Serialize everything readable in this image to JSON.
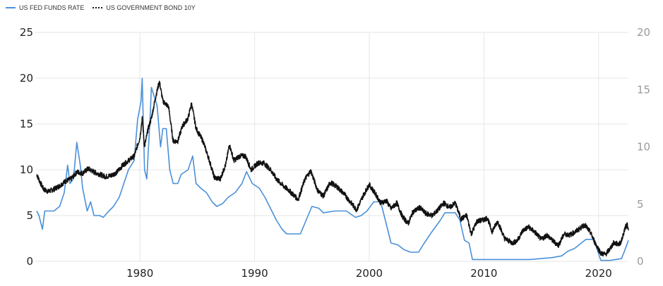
{
  "legend": {
    "fed_label": "US FED FUNDS RATE",
    "bond_label": "US GOVERNMENT BOND 10Y"
  },
  "colors": {
    "fed": "#4a90d9",
    "bond": "#111111",
    "grid": "#e6e6e6"
  },
  "chart_data": {
    "type": "line",
    "x_range": [
      1971,
      2022.6
    ],
    "x_ticks": [
      "1980",
      "1990",
      "2000",
      "2010",
      "2020"
    ],
    "y_left": {
      "range": [
        0,
        25
      ],
      "ticks": [
        "0",
        "5",
        "10",
        "15",
        "20",
        "25"
      ]
    },
    "y_right": {
      "range": [
        0,
        20
      ],
      "ticks": [
        "0",
        "5",
        "10",
        "15",
        "20"
      ]
    },
    "grid": true,
    "legend_position": "top-left",
    "series": [
      {
        "name": "US FED FUNDS RATE",
        "axis": "left",
        "style": "solid",
        "points": [
          [
            1971.0,
            5.5
          ],
          [
            1971.2,
            5.0
          ],
          [
            1971.5,
            3.5
          ],
          [
            1971.7,
            5.5
          ],
          [
            1972.5,
            5.5
          ],
          [
            1973.0,
            6.0
          ],
          [
            1973.4,
            7.5
          ],
          [
            1973.7,
            10.5
          ],
          [
            1973.9,
            8.5
          ],
          [
            1974.2,
            9.0
          ],
          [
            1974.5,
            13.0
          ],
          [
            1974.8,
            10.5
          ],
          [
            1975.0,
            8.0
          ],
          [
            1975.4,
            5.5
          ],
          [
            1975.7,
            6.5
          ],
          [
            1976.0,
            5.0
          ],
          [
            1976.5,
            5.0
          ],
          [
            1976.8,
            4.8
          ],
          [
            1977.3,
            5.5
          ],
          [
            1977.7,
            6.0
          ],
          [
            1978.2,
            7.0
          ],
          [
            1978.6,
            8.5
          ],
          [
            1979.0,
            10.0
          ],
          [
            1979.5,
            11.0
          ],
          [
            1979.8,
            15.5
          ],
          [
            1980.1,
            17.5
          ],
          [
            1980.2,
            20.0
          ],
          [
            1980.4,
            10.0
          ],
          [
            1980.6,
            9.0
          ],
          [
            1980.9,
            16.0
          ],
          [
            1981.0,
            19.0
          ],
          [
            1981.5,
            17.0
          ],
          [
            1981.8,
            12.5
          ],
          [
            1982.0,
            14.5
          ],
          [
            1982.3,
            14.5
          ],
          [
            1982.6,
            10.0
          ],
          [
            1982.9,
            8.5
          ],
          [
            1983.3,
            8.5
          ],
          [
            1983.6,
            9.5
          ],
          [
            1984.2,
            10.0
          ],
          [
            1984.6,
            11.5
          ],
          [
            1984.9,
            8.5
          ],
          [
            1985.3,
            8.0
          ],
          [
            1985.8,
            7.5
          ],
          [
            1986.3,
            6.5
          ],
          [
            1986.7,
            6.0
          ],
          [
            1987.2,
            6.3
          ],
          [
            1987.7,
            7.0
          ],
          [
            1988.3,
            7.5
          ],
          [
            1988.9,
            8.5
          ],
          [
            1989.3,
            9.8
          ],
          [
            1989.8,
            8.5
          ],
          [
            1990.4,
            8.0
          ],
          [
            1990.9,
            7.0
          ],
          [
            1991.3,
            6.0
          ],
          [
            1991.9,
            4.5
          ],
          [
            1992.4,
            3.5
          ],
          [
            1992.8,
            3.0
          ],
          [
            1993.5,
            3.0
          ],
          [
            1994.0,
            3.0
          ],
          [
            1994.5,
            4.5
          ],
          [
            1995.0,
            6.0
          ],
          [
            1995.6,
            5.8
          ],
          [
            1996.0,
            5.3
          ],
          [
            1997.0,
            5.5
          ],
          [
            1998.0,
            5.5
          ],
          [
            1998.8,
            4.8
          ],
          [
            1999.3,
            5.0
          ],
          [
            1999.8,
            5.5
          ],
          [
            2000.4,
            6.5
          ],
          [
            2001.0,
            6.5
          ],
          [
            2001.4,
            4.5
          ],
          [
            2001.9,
            2.0
          ],
          [
            2002.5,
            1.8
          ],
          [
            2003.0,
            1.3
          ],
          [
            2003.6,
            1.0
          ],
          [
            2004.3,
            1.0
          ],
          [
            2004.8,
            2.0
          ],
          [
            2005.5,
            3.3
          ],
          [
            2006.2,
            4.5
          ],
          [
            2006.6,
            5.3
          ],
          [
            2007.5,
            5.3
          ],
          [
            2007.9,
            4.5
          ],
          [
            2008.3,
            2.3
          ],
          [
            2008.7,
            2.0
          ],
          [
            2009.0,
            0.2
          ],
          [
            2010.0,
            0.2
          ],
          [
            2012.0,
            0.2
          ],
          [
            2014.0,
            0.2
          ],
          [
            2015.9,
            0.4
          ],
          [
            2016.8,
            0.6
          ],
          [
            2017.3,
            1.1
          ],
          [
            2017.9,
            1.4
          ],
          [
            2018.4,
            1.9
          ],
          [
            2018.9,
            2.4
          ],
          [
            2019.5,
            2.4
          ],
          [
            2019.8,
            1.6
          ],
          [
            2020.2,
            0.1
          ],
          [
            2021.0,
            0.1
          ],
          [
            2022.0,
            0.3
          ],
          [
            2022.4,
            1.6
          ],
          [
            2022.6,
            2.3
          ]
        ]
      },
      {
        "name": "US GOVERNMENT BOND 10Y",
        "axis": "right",
        "style": "dotted",
        "points": [
          [
            1971.0,
            7.6
          ],
          [
            1971.3,
            6.9
          ],
          [
            1971.6,
            6.3
          ],
          [
            1972.0,
            6.1
          ],
          [
            1972.5,
            6.3
          ],
          [
            1973.0,
            6.6
          ],
          [
            1973.5,
            7.0
          ],
          [
            1974.0,
            7.2
          ],
          [
            1974.5,
            7.8
          ],
          [
            1975.0,
            7.7
          ],
          [
            1975.5,
            8.1
          ],
          [
            1976.0,
            7.8
          ],
          [
            1976.5,
            7.6
          ],
          [
            1977.0,
            7.4
          ],
          [
            1977.5,
            7.5
          ],
          [
            1978.0,
            7.8
          ],
          [
            1978.5,
            8.4
          ],
          [
            1979.0,
            8.8
          ],
          [
            1979.5,
            9.2
          ],
          [
            1980.0,
            10.8
          ],
          [
            1980.2,
            12.5
          ],
          [
            1980.4,
            10.0
          ],
          [
            1980.7,
            11.5
          ],
          [
            1981.0,
            12.5
          ],
          [
            1981.4,
            14.5
          ],
          [
            1981.7,
            15.7
          ],
          [
            1982.0,
            14.0
          ],
          [
            1982.5,
            13.5
          ],
          [
            1982.9,
            10.5
          ],
          [
            1983.3,
            10.5
          ],
          [
            1983.7,
            11.8
          ],
          [
            1984.2,
            12.5
          ],
          [
            1984.5,
            13.8
          ],
          [
            1984.9,
            11.6
          ],
          [
            1985.5,
            10.5
          ],
          [
            1986.0,
            9.0
          ],
          [
            1986.5,
            7.3
          ],
          [
            1987.0,
            7.2
          ],
          [
            1987.5,
            8.5
          ],
          [
            1987.8,
            10.2
          ],
          [
            1988.2,
            8.8
          ],
          [
            1988.7,
            9.2
          ],
          [
            1989.2,
            9.2
          ],
          [
            1989.7,
            8.0
          ],
          [
            1990.3,
            8.6
          ],
          [
            1990.8,
            8.6
          ],
          [
            1991.4,
            8.0
          ],
          [
            1991.9,
            7.2
          ],
          [
            1992.5,
            6.6
          ],
          [
            1993.0,
            6.2
          ],
          [
            1993.8,
            5.4
          ],
          [
            1994.4,
            7.2
          ],
          [
            1994.9,
            7.9
          ],
          [
            1995.5,
            6.2
          ],
          [
            1996.0,
            5.7
          ],
          [
            1996.6,
            6.9
          ],
          [
            1997.2,
            6.5
          ],
          [
            1997.8,
            5.9
          ],
          [
            1998.5,
            5.0
          ],
          [
            1998.9,
            4.5
          ],
          [
            1999.5,
            5.8
          ],
          [
            2000.0,
            6.7
          ],
          [
            2000.6,
            5.8
          ],
          [
            2001.0,
            5.1
          ],
          [
            2001.5,
            5.3
          ],
          [
            2001.9,
            4.6
          ],
          [
            2002.4,
            5.1
          ],
          [
            2002.9,
            3.9
          ],
          [
            2003.4,
            3.3
          ],
          [
            2003.8,
            4.3
          ],
          [
            2004.4,
            4.7
          ],
          [
            2004.9,
            4.2
          ],
          [
            2005.5,
            4.0
          ],
          [
            2006.0,
            4.5
          ],
          [
            2006.5,
            5.1
          ],
          [
            2007.0,
            4.7
          ],
          [
            2007.5,
            5.1
          ],
          [
            2008.0,
            3.7
          ],
          [
            2008.5,
            4.0
          ],
          [
            2008.9,
            2.4
          ],
          [
            2009.4,
            3.5
          ],
          [
            2009.9,
            3.6
          ],
          [
            2010.3,
            3.8
          ],
          [
            2010.7,
            2.6
          ],
          [
            2011.2,
            3.5
          ],
          [
            2011.8,
            2.0
          ],
          [
            2012.5,
            1.6
          ],
          [
            2012.9,
            1.8
          ],
          [
            2013.4,
            2.7
          ],
          [
            2013.9,
            3.0
          ],
          [
            2014.5,
            2.5
          ],
          [
            2015.0,
            1.9
          ],
          [
            2015.5,
            2.3
          ],
          [
            2016.0,
            1.8
          ],
          [
            2016.5,
            1.4
          ],
          [
            2017.0,
            2.4
          ],
          [
            2017.5,
            2.3
          ],
          [
            2018.0,
            2.6
          ],
          [
            2018.8,
            3.2
          ],
          [
            2019.3,
            2.5
          ],
          [
            2019.7,
            1.6
          ],
          [
            2020.2,
            0.7
          ],
          [
            2020.6,
            0.6
          ],
          [
            2021.0,
            1.1
          ],
          [
            2021.3,
            1.6
          ],
          [
            2021.8,
            1.5
          ],
          [
            2022.0,
            1.8
          ],
          [
            2022.3,
            2.9
          ],
          [
            2022.5,
            3.2
          ],
          [
            2022.6,
            2.7
          ]
        ]
      }
    ]
  }
}
